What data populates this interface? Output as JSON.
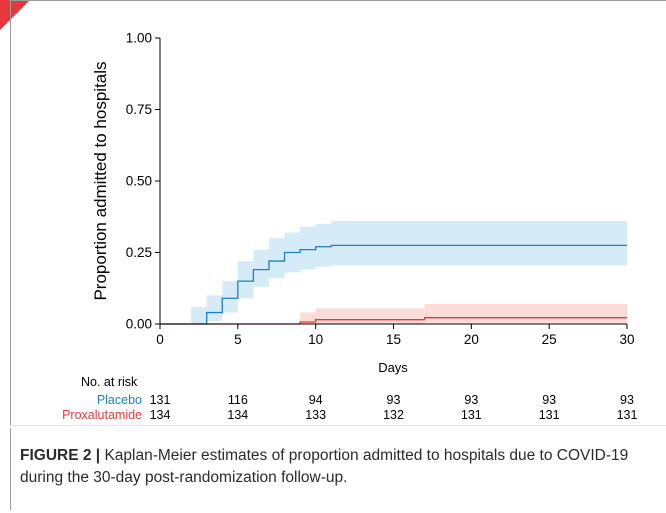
{
  "figure": {
    "label": "FIGURE 2 |",
    "caption": "Kaplan-Meier estimates of proportion admitted to hospitals due to COVID-19 during the 30-day post-randomization follow-up."
  },
  "colors": {
    "placebo": "#1f7fc0",
    "placebo_band": "#d5ebf8",
    "proxalutamide": "#e8383d",
    "proxalutamide_band": "#fbdcd9",
    "axis": "#000000",
    "corner_mark": "#e8383d"
  },
  "chart_data": {
    "type": "line",
    "subtype": "kaplan-meier-step",
    "title": "",
    "xlabel": "Days",
    "ylabel": "Proportion admitted to hospitals",
    "xlim": [
      0,
      30
    ],
    "ylim": [
      0,
      1
    ],
    "x_ticks": [
      0,
      5,
      10,
      15,
      20,
      25,
      30
    ],
    "x_tick_labels": [
      "0",
      "5",
      "10",
      "15",
      "20",
      "25",
      "30"
    ],
    "y_ticks": [
      0,
      0.25,
      0.5,
      0.75,
      1
    ],
    "y_tick_labels": [
      "0.00",
      "0.25",
      "0.50",
      "0.75",
      "1.00"
    ],
    "grid": false,
    "series": [
      {
        "name": "Placebo",
        "color_key": "placebo",
        "steps": [
          {
            "x": 0,
            "y": 0,
            "lo": 0,
            "hi": 0
          },
          {
            "x": 2,
            "y": 0,
            "lo": 0,
            "hi": 0.06
          },
          {
            "x": 3,
            "y": 0.02,
            "lo": 0,
            "hi": 0.06
          },
          {
            "x": 3,
            "y": 0.04,
            "lo": 0.01,
            "hi": 0.1
          },
          {
            "x": 4,
            "y": 0.09,
            "lo": 0.04,
            "hi": 0.15
          },
          {
            "x": 5,
            "y": 0.15,
            "lo": 0.09,
            "hi": 0.22
          },
          {
            "x": 6,
            "y": 0.19,
            "lo": 0.13,
            "hi": 0.26
          },
          {
            "x": 7,
            "y": 0.22,
            "lo": 0.16,
            "hi": 0.3
          },
          {
            "x": 8,
            "y": 0.25,
            "lo": 0.18,
            "hi": 0.32
          },
          {
            "x": 9,
            "y": 0.26,
            "lo": 0.19,
            "hi": 0.34
          },
          {
            "x": 10,
            "y": 0.27,
            "lo": 0.2,
            "hi": 0.35
          },
          {
            "x": 11,
            "y": 0.275,
            "lo": 0.205,
            "hi": 0.36
          },
          {
            "x": 30,
            "y": 0.275,
            "lo": 0.205,
            "hi": 0.36
          }
        ]
      },
      {
        "name": "Proxalutamide",
        "color_key": "proxalutamide",
        "steps": [
          {
            "x": 0,
            "y": 0,
            "lo": 0,
            "hi": 0
          },
          {
            "x": 9,
            "y": 0.007,
            "lo": 0,
            "hi": 0.04
          },
          {
            "x": 10,
            "y": 0.015,
            "lo": 0,
            "hi": 0.055
          },
          {
            "x": 17,
            "y": 0.022,
            "lo": 0.003,
            "hi": 0.07
          },
          {
            "x": 30,
            "y": 0.022,
            "lo": 0.003,
            "hi": 0.07
          }
        ]
      }
    ],
    "risk_table": {
      "title": "No. at risk",
      "timepoints": [
        0,
        5,
        10,
        15,
        20,
        25,
        30
      ],
      "rows": [
        {
          "label": "Placebo",
          "color_key": "placebo",
          "values": [
            "131",
            "116",
            "94",
            "93",
            "93",
            "93",
            "93"
          ]
        },
        {
          "label": "Proxalutamide",
          "color_key": "proxalutamide",
          "values": [
            "134",
            "134",
            "133",
            "132",
            "131",
            "131",
            "131"
          ]
        }
      ]
    }
  }
}
